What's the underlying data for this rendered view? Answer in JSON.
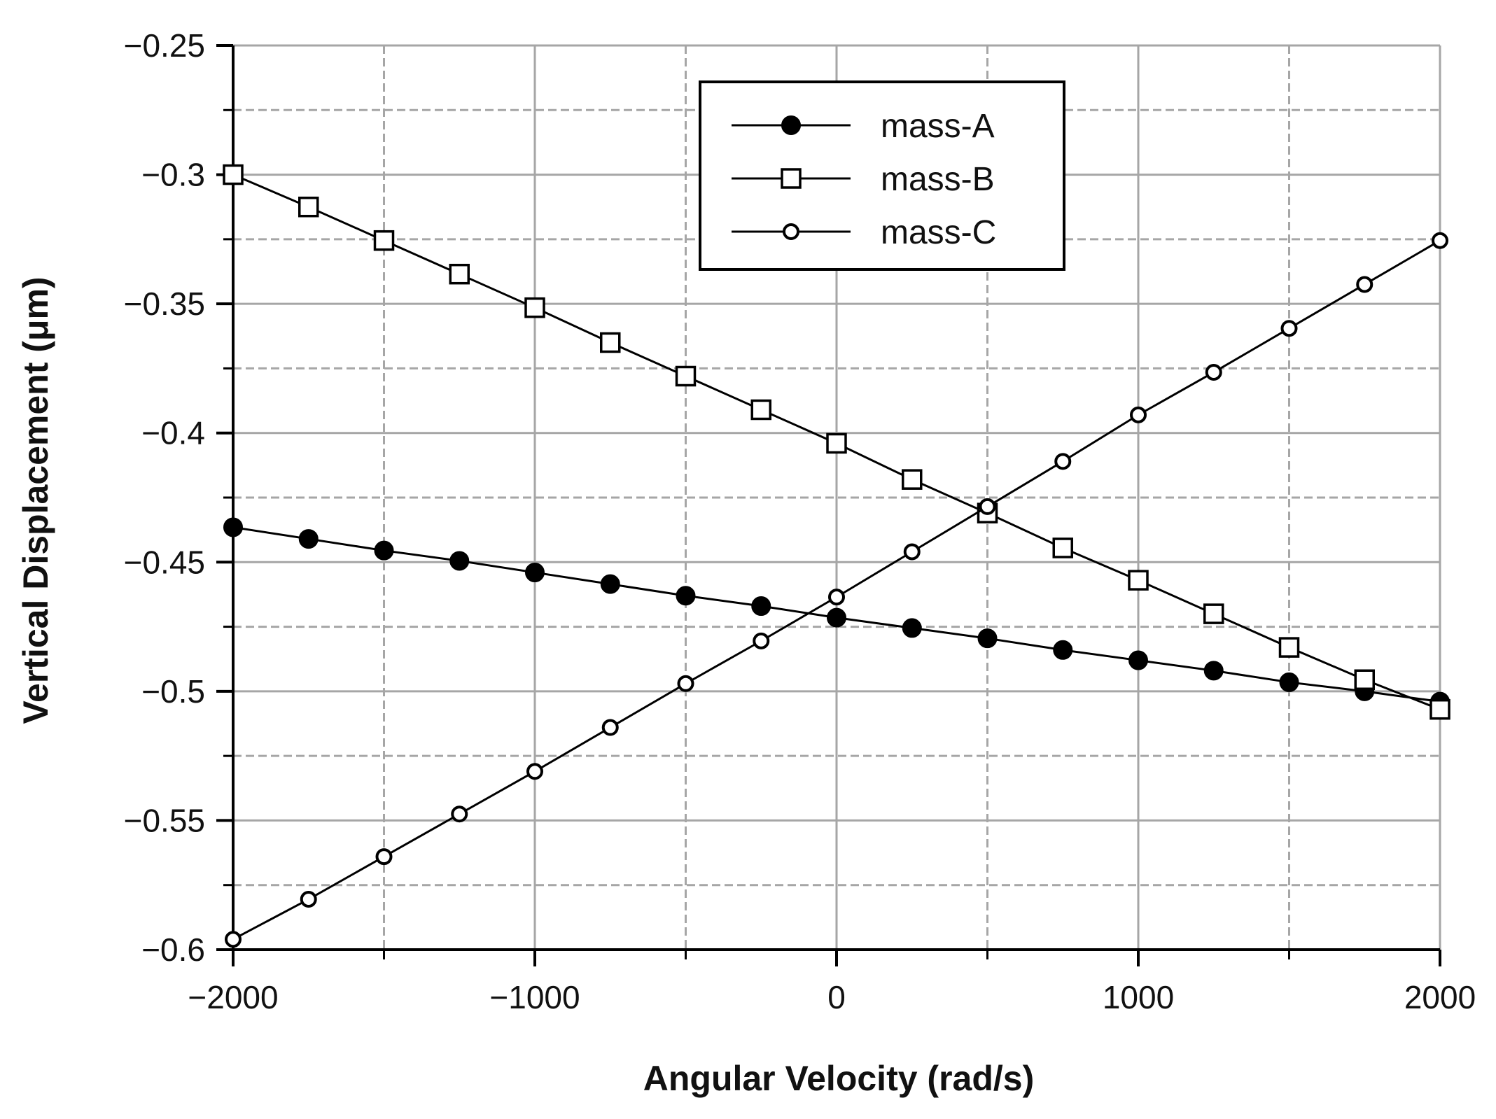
{
  "chart_data": {
    "type": "line",
    "xlabel": "Angular Velocity (rad/s)",
    "ylabel": "Vertical Displacement (μm)",
    "xlim": [
      -2000,
      2000
    ],
    "ylim": [
      -0.6,
      -0.25
    ],
    "x_ticks": [
      -2000,
      -1000,
      0,
      1000,
      2000
    ],
    "x_tick_labels": [
      "−2000",
      "−1000",
      "0",
      "1000",
      "2000"
    ],
    "y_ticks": [
      -0.6,
      -0.55,
      -0.5,
      -0.45,
      -0.4,
      -0.35,
      -0.3,
      -0.25
    ],
    "y_tick_labels": [
      "−0.6",
      "−0.55",
      "−0.5",
      "−0.45",
      "−0.4",
      "−0.35",
      "−0.3",
      "−0.25"
    ],
    "x_minor_ticks": [
      -1500,
      -500,
      500,
      1500
    ],
    "y_minor_ticks": [
      -0.575,
      -0.525,
      -0.475,
      -0.425,
      -0.375,
      -0.325,
      -0.275
    ],
    "grid": true,
    "legend_position": "top-center",
    "x": [
      -2000,
      -1750,
      -1500,
      -1250,
      -1000,
      -750,
      -500,
      -250,
      0,
      250,
      500,
      750,
      1000,
      1250,
      1500,
      1750,
      2000
    ],
    "series": [
      {
        "name": "mass-A",
        "marker": "filled-circle",
        "values": [
          -0.4365,
          -0.441,
          -0.4455,
          -0.4495,
          -0.454,
          -0.4585,
          -0.463,
          -0.467,
          -0.4715,
          -0.4755,
          -0.4795,
          -0.484,
          -0.488,
          -0.492,
          -0.4965,
          -0.5,
          -0.504
        ]
      },
      {
        "name": "mass-B",
        "marker": "open-square",
        "values": [
          -0.3,
          -0.3125,
          -0.3255,
          -0.3385,
          -0.3515,
          -0.365,
          -0.378,
          -0.391,
          -0.404,
          -0.418,
          -0.431,
          -0.4445,
          -0.457,
          -0.47,
          -0.483,
          -0.4955,
          -0.507
        ]
      },
      {
        "name": "mass-C",
        "marker": "open-circle",
        "values": [
          -0.596,
          -0.5805,
          -0.564,
          -0.5475,
          -0.531,
          -0.514,
          -0.497,
          -0.4805,
          -0.4635,
          -0.446,
          -0.4285,
          -0.411,
          -0.393,
          -0.3765,
          -0.3595,
          -0.3425,
          -0.3255
        ]
      }
    ]
  }
}
